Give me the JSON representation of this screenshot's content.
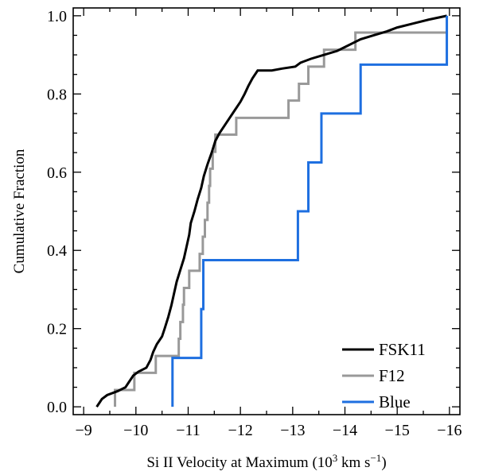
{
  "chart_data": {
    "type": "line",
    "xlabel_main": "Si II Velocity at Maximum (10",
    "xlabel_sup1": "3",
    "xlabel_mid": " km s",
    "xlabel_sup2": "−1",
    "xlabel_end": ")",
    "ylabel": "Cumulative Fraction",
    "xlim": [
      -8.8,
      -16.2
    ],
    "ylim": [
      -0.02,
      1.02
    ],
    "x_ticks": [
      -9,
      -10,
      -11,
      -12,
      -13,
      -14,
      -15,
      -16
    ],
    "x_tick_labels": [
      "−9",
      "−10",
      "−11",
      "−12",
      "−13",
      "−14",
      "−15",
      "−16"
    ],
    "y_ticks": [
      0.0,
      0.2,
      0.4,
      0.6,
      0.8,
      1.0
    ],
    "y_tick_labels": [
      "0.0",
      "0.2",
      "0.4",
      "0.6",
      "0.8",
      "1.0"
    ],
    "legend_position": "bottom-right",
    "series": [
      {
        "name": "FSK11",
        "color": "#000000",
        "points": [
          [
            -9.25,
            0.0
          ],
          [
            -9.3,
            0.01
          ],
          [
            -9.35,
            0.02
          ],
          [
            -9.45,
            0.03
          ],
          [
            -9.65,
            0.04
          ],
          [
            -9.8,
            0.05
          ],
          [
            -9.85,
            0.06
          ],
          [
            -9.95,
            0.08
          ],
          [
            -10.05,
            0.09
          ],
          [
            -10.2,
            0.1
          ],
          [
            -10.28,
            0.12
          ],
          [
            -10.33,
            0.14
          ],
          [
            -10.4,
            0.16
          ],
          [
            -10.5,
            0.18
          ],
          [
            -10.55,
            0.2
          ],
          [
            -10.62,
            0.23
          ],
          [
            -10.68,
            0.26
          ],
          [
            -10.73,
            0.29
          ],
          [
            -10.78,
            0.32
          ],
          [
            -10.85,
            0.35
          ],
          [
            -10.92,
            0.38
          ],
          [
            -10.97,
            0.41
          ],
          [
            -11.02,
            0.44
          ],
          [
            -11.05,
            0.47
          ],
          [
            -11.12,
            0.5
          ],
          [
            -11.18,
            0.53
          ],
          [
            -11.25,
            0.56
          ],
          [
            -11.3,
            0.59
          ],
          [
            -11.37,
            0.62
          ],
          [
            -11.45,
            0.65
          ],
          [
            -11.52,
            0.68
          ],
          [
            -11.6,
            0.7
          ],
          [
            -11.7,
            0.72
          ],
          [
            -11.8,
            0.74
          ],
          [
            -11.9,
            0.76
          ],
          [
            -12.0,
            0.78
          ],
          [
            -12.08,
            0.8
          ],
          [
            -12.15,
            0.82
          ],
          [
            -12.23,
            0.84
          ],
          [
            -12.33,
            0.86
          ],
          [
            -12.5,
            0.86
          ],
          [
            -12.6,
            0.86
          ],
          [
            -12.8,
            0.865
          ],
          [
            -13.05,
            0.87
          ],
          [
            -13.15,
            0.88
          ],
          [
            -13.35,
            0.89
          ],
          [
            -13.6,
            0.9
          ],
          [
            -13.85,
            0.91
          ],
          [
            -14.0,
            0.92
          ],
          [
            -14.15,
            0.93
          ],
          [
            -14.3,
            0.94
          ],
          [
            -14.55,
            0.95
          ],
          [
            -14.8,
            0.96
          ],
          [
            -15.0,
            0.97
          ],
          [
            -15.3,
            0.98
          ],
          [
            -15.6,
            0.99
          ],
          [
            -15.95,
            1.0
          ]
        ]
      },
      {
        "name": "F12",
        "color": "#999999",
        "points": [
          [
            -9.6,
            0.0
          ],
          [
            -9.6,
            0.043
          ],
          [
            -9.97,
            0.043
          ],
          [
            -9.97,
            0.087
          ],
          [
            -10.38,
            0.087
          ],
          [
            -10.38,
            0.13
          ],
          [
            -10.82,
            0.13
          ],
          [
            -10.82,
            0.174
          ],
          [
            -10.85,
            0.174
          ],
          [
            -10.85,
            0.217
          ],
          [
            -10.9,
            0.217
          ],
          [
            -10.9,
            0.261
          ],
          [
            -10.92,
            0.261
          ],
          [
            -10.92,
            0.304
          ],
          [
            -11.02,
            0.304
          ],
          [
            -11.02,
            0.348
          ],
          [
            -11.22,
            0.348
          ],
          [
            -11.22,
            0.391
          ],
          [
            -11.28,
            0.391
          ],
          [
            -11.28,
            0.435
          ],
          [
            -11.32,
            0.435
          ],
          [
            -11.32,
            0.478
          ],
          [
            -11.37,
            0.478
          ],
          [
            -11.37,
            0.522
          ],
          [
            -11.4,
            0.522
          ],
          [
            -11.4,
            0.565
          ],
          [
            -11.42,
            0.565
          ],
          [
            -11.42,
            0.609
          ],
          [
            -11.47,
            0.609
          ],
          [
            -11.47,
            0.652
          ],
          [
            -11.52,
            0.652
          ],
          [
            -11.52,
            0.696
          ],
          [
            -11.92,
            0.696
          ],
          [
            -11.92,
            0.739
          ],
          [
            -12.92,
            0.739
          ],
          [
            -12.92,
            0.783
          ],
          [
            -13.12,
            0.783
          ],
          [
            -13.12,
            0.826
          ],
          [
            -13.3,
            0.826
          ],
          [
            -13.3,
            0.87
          ],
          [
            -13.6,
            0.87
          ],
          [
            -13.6,
            0.913
          ],
          [
            -14.2,
            0.913
          ],
          [
            -14.2,
            0.957
          ],
          [
            -15.95,
            0.957
          ]
        ]
      },
      {
        "name": "Blue",
        "color": "#1e6fe0",
        "points": [
          [
            -10.7,
            0.0
          ],
          [
            -10.7,
            0.125
          ],
          [
            -11.25,
            0.125
          ],
          [
            -11.25,
            0.25
          ],
          [
            -11.29,
            0.25
          ],
          [
            -11.29,
            0.375
          ],
          [
            -13.1,
            0.375
          ],
          [
            -13.1,
            0.5
          ],
          [
            -13.3,
            0.5
          ],
          [
            -13.3,
            0.625
          ],
          [
            -13.55,
            0.625
          ],
          [
            -13.55,
            0.75
          ],
          [
            -14.3,
            0.75
          ],
          [
            -14.3,
            0.875
          ],
          [
            -15.95,
            0.875
          ],
          [
            -15.95,
            1.0
          ]
        ]
      }
    ]
  }
}
